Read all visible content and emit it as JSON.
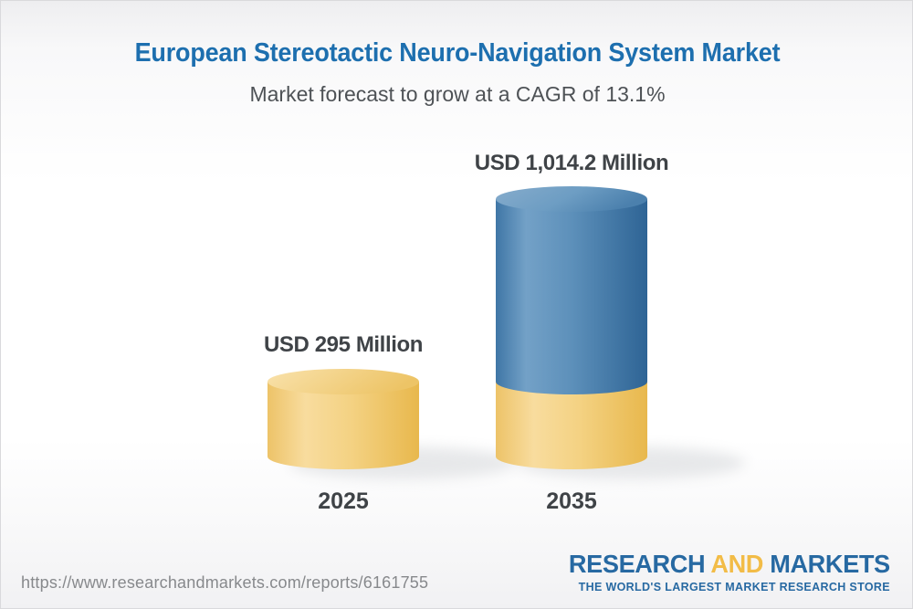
{
  "header": {
    "title": "European Stereotactic Neuro-Navigation System Market",
    "subtitle": "Market forecast to grow at a CAGR of 13.1%"
  },
  "footer": {
    "url": "https://www.researchandmarkets.com/reports/6161755",
    "logo": {
      "word1": "RESEARCH",
      "word2": "AND",
      "word3": "MARKETS",
      "tagline": "THE WORLD'S LARGEST MARKET RESEARCH STORE"
    }
  },
  "colors": {
    "title_blue": "#1d6faf",
    "label_dark": "#3f4347",
    "subtitle_gray": "#4e5256",
    "url_gray": "#87898c",
    "logo_blue": "#2769a2",
    "logo_gold": "#f2bc47",
    "bar_yellow": "#f2ce7d",
    "bar_blue": "#4a7fac"
  },
  "chart_data": {
    "type": "bar",
    "variant": "3d-cylinder-stacked",
    "title": "European Stereotactic Neuro-Navigation System Market",
    "subtitle": "Market forecast to grow at a CAGR of 13.1%",
    "cagr_percent": 13.1,
    "unit": "USD Million",
    "categories": [
      "2025",
      "2035"
    ],
    "values": [
      295,
      1014.2
    ],
    "value_labels": [
      "USD 295 Million",
      "USD 1,014.2 Million"
    ],
    "ymax": 1014.2,
    "legend": false,
    "grid": false,
    "bars": [
      {
        "category": "2025",
        "total": 295,
        "label": "USD 295 Million",
        "segments": [
          {
            "value": 295,
            "color": "yellow"
          }
        ]
      },
      {
        "category": "2035",
        "total": 1014.2,
        "label": "USD 1,014.2 Million",
        "segments": [
          {
            "value": 295,
            "color": "yellow"
          },
          {
            "value": 719.2,
            "color": "blue"
          }
        ]
      }
    ]
  }
}
